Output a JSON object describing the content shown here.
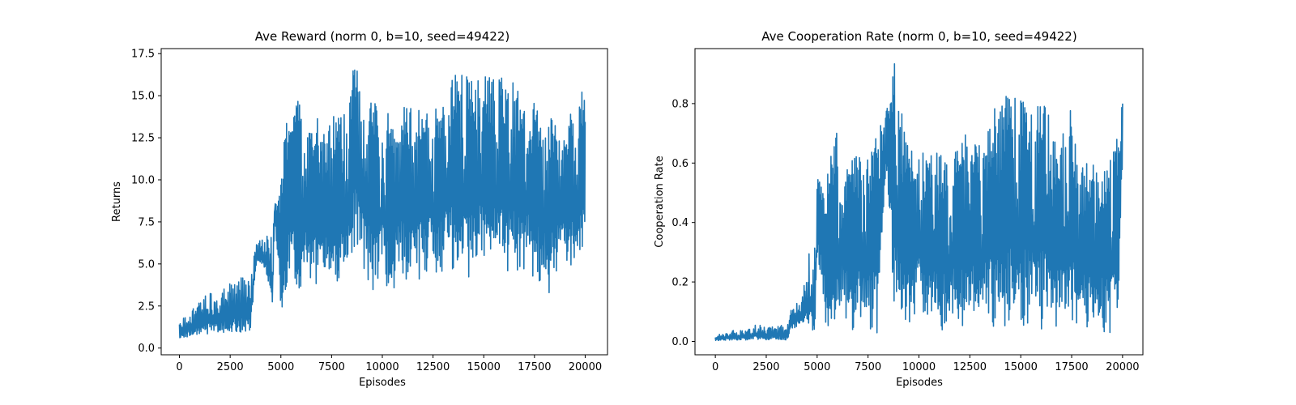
{
  "chart_data": [
    {
      "type": "line",
      "title": "Ave Reward (norm 0, b=10, seed=49422)",
      "xlabel": "Episodes",
      "ylabel": "Returns",
      "xlim": [
        -900,
        21100
      ],
      "ylim": [
        -0.4,
        17.8
      ],
      "x_ticks": [
        0,
        2500,
        5000,
        7500,
        10000,
        12500,
        15000,
        17500,
        20000
      ],
      "x_tick_labels": [
        "0",
        "2500",
        "5000",
        "7500",
        "10000",
        "12500",
        "15000",
        "17500",
        "20000"
      ],
      "y_ticks": [
        0.0,
        2.5,
        5.0,
        7.5,
        10.0,
        12.5,
        15.0,
        17.5
      ],
      "y_tick_labels": [
        "0.0",
        "2.5",
        "5.0",
        "7.5",
        "10.0",
        "12.5",
        "15.0",
        "17.5"
      ],
      "grid": false,
      "series": [
        {
          "color": "#1f77b4",
          "bands": [
            [
              0,
              0.5,
              1.4
            ],
            [
              500,
              0.5,
              2.4
            ],
            [
              1000,
              0.6,
              2.9
            ],
            [
              1500,
              0.5,
              3.5
            ],
            [
              2000,
              0.6,
              4.0
            ],
            [
              2500,
              0.6,
              3.8
            ],
            [
              3000,
              0.5,
              4.4
            ],
            [
              3500,
              0.7,
              3.9
            ],
            [
              3800,
              5.0,
              6.5
            ],
            [
              4200,
              4.5,
              6.6
            ],
            [
              4600,
              2.0,
              6.8
            ],
            [
              4700,
              7.5,
              9.8
            ],
            [
              5000,
              1.5,
              10.2
            ],
            [
              5200,
              3.4,
              13.3
            ],
            [
              5800,
              3.3,
              15.2
            ],
            [
              6200,
              4.0,
              12.8
            ],
            [
              6800,
              3.4,
              14.0
            ],
            [
              7200,
              3.6,
              13.2
            ],
            [
              7800,
              3.5,
              14.3
            ],
            [
              8200,
              3.2,
              14.0
            ],
            [
              8500,
              5.5,
              16.3
            ],
            [
              8800,
              6.0,
              17.4
            ],
            [
              9100,
              3.4,
              15.8
            ],
            [
              9600,
              3.4,
              14.6
            ],
            [
              10000,
              3.5,
              14.8
            ],
            [
              10400,
              3.0,
              14.0
            ],
            [
              10800,
              3.9,
              14.4
            ],
            [
              11200,
              4.0,
              14.3
            ],
            [
              11800,
              4.0,
              14.6
            ],
            [
              12400,
              4.3,
              14.4
            ],
            [
              12800,
              4.6,
              14.1
            ],
            [
              13200,
              4.3,
              16.2
            ],
            [
              13800,
              4.3,
              16.3
            ],
            [
              14400,
              4.0,
              16.4
            ],
            [
              15000,
              4.5,
              16.4
            ],
            [
              15600,
              4.1,
              16.2
            ],
            [
              16200,
              4.3,
              16.3
            ],
            [
              16800,
              4.3,
              15.1
            ],
            [
              17400,
              4.3,
              15.0
            ],
            [
              17800,
              3.7,
              14.0
            ],
            [
              18200,
              3.0,
              14.0
            ],
            [
              18600,
              4.3,
              13.4
            ],
            [
              19000,
              4.5,
              13.2
            ],
            [
              19400,
              4.3,
              14.6
            ],
            [
              19800,
              4.3,
              15.0
            ],
            [
              20000,
              4.5,
              16.2
            ]
          ],
          "segments": [
            [
              5000,
              6000
            ],
            [
              6400,
              6800
            ],
            [
              7600,
              8000
            ],
            [
              8400,
              8800
            ],
            [
              9300,
              9800
            ],
            [
              10200,
              10600
            ],
            [
              11000,
              11400
            ],
            [
              11800,
              12200
            ],
            [
              12600,
              13000
            ],
            [
              13400,
              13800
            ],
            [
              14200,
              14600
            ],
            [
              15000,
              15400
            ],
            [
              15800,
              16200
            ],
            [
              16600,
              17000
            ],
            [
              17400,
              17800
            ],
            [
              18200,
              18600
            ],
            [
              19000,
              19400
            ],
            [
              19700,
              20000
            ]
          ]
        }
      ]
    },
    {
      "type": "line",
      "title": "Ave Cooperation Rate (norm 0, b=10, seed=49422)",
      "xlabel": "Episodes",
      "ylabel": "Cooperation Rate",
      "xlim": [
        -1000,
        21000
      ],
      "ylim": [
        -0.045,
        0.985
      ],
      "x_ticks": [
        0,
        2500,
        5000,
        7500,
        10000,
        12500,
        15000,
        17500,
        20000
      ],
      "x_tick_labels": [
        "0",
        "2500",
        "5000",
        "7500",
        "10000",
        "12500",
        "15000",
        "17500",
        "20000"
      ],
      "y_ticks": [
        0.0,
        0.2,
        0.4,
        0.6,
        0.8
      ],
      "y_tick_labels": [
        "0.0",
        "0.2",
        "0.4",
        "0.6",
        "0.8"
      ],
      "grid": false,
      "series": [
        {
          "color": "#1f77b4",
          "bands": [
            [
              0,
              0.0,
              0.02
            ],
            [
              500,
              0.0,
              0.03
            ],
            [
              1000,
              0.0,
              0.04
            ],
            [
              1500,
              0.0,
              0.04
            ],
            [
              2000,
              0.0,
              0.06
            ],
            [
              2500,
              0.0,
              0.05
            ],
            [
              3000,
              0.0,
              0.06
            ],
            [
              3500,
              0.0,
              0.05
            ],
            [
              3800,
              0.03,
              0.14
            ],
            [
              4200,
              0.05,
              0.12
            ],
            [
              4600,
              0.02,
              0.3
            ],
            [
              4900,
              0.0,
              0.32
            ],
            [
              5000,
              0.3,
              0.55
            ],
            [
              5400,
              0.05,
              0.52
            ],
            [
              6000,
              0.05,
              0.74
            ],
            [
              6400,
              0.05,
              0.6
            ],
            [
              7000,
              0.02,
              0.66
            ],
            [
              7600,
              0.02,
              0.64
            ],
            [
              8000,
              0.02,
              0.72
            ],
            [
              8400,
              0.6,
              0.81
            ],
            [
              8800,
              0.1,
              0.94
            ],
            [
              9100,
              0.02,
              0.78
            ],
            [
              9600,
              0.03,
              0.66
            ],
            [
              10000,
              0.1,
              0.68
            ],
            [
              10400,
              0.03,
              0.6
            ],
            [
              10800,
              0.03,
              0.66
            ],
            [
              11200,
              0.03,
              0.62
            ],
            [
              11800,
              0.03,
              0.68
            ],
            [
              12400,
              0.04,
              0.7
            ],
            [
              12800,
              0.04,
              0.66
            ],
            [
              13200,
              0.06,
              0.67
            ],
            [
              13800,
              0.04,
              0.82
            ],
            [
              14400,
              0.04,
              0.83
            ],
            [
              15000,
              0.04,
              0.83
            ],
            [
              15600,
              0.04,
              0.8
            ],
            [
              16200,
              0.04,
              0.8
            ],
            [
              16800,
              0.04,
              0.67
            ],
            [
              17400,
              0.04,
              0.8
            ],
            [
              17800,
              0.03,
              0.62
            ],
            [
              18200,
              0.03,
              0.6
            ],
            [
              18600,
              0.03,
              0.6
            ],
            [
              19000,
              0.03,
              0.56
            ],
            [
              19400,
              0.03,
              0.64
            ],
            [
              19800,
              0.04,
              0.7
            ],
            [
              20000,
              0.62,
              0.81
            ]
          ],
          "segments": [
            [
              5000,
              6000
            ],
            [
              6400,
              6800
            ],
            [
              7600,
              8000
            ],
            [
              8400,
              8800
            ],
            [
              9300,
              9800
            ],
            [
              10200,
              10600
            ],
            [
              11000,
              11400
            ],
            [
              11800,
              12200
            ],
            [
              12600,
              13000
            ],
            [
              13400,
              13800
            ],
            [
              14200,
              14600
            ],
            [
              15000,
              15400
            ],
            [
              15800,
              16200
            ],
            [
              16600,
              17000
            ],
            [
              17400,
              17800
            ],
            [
              18200,
              18600
            ],
            [
              19000,
              19400
            ],
            [
              19700,
              20000
            ]
          ]
        }
      ]
    }
  ]
}
